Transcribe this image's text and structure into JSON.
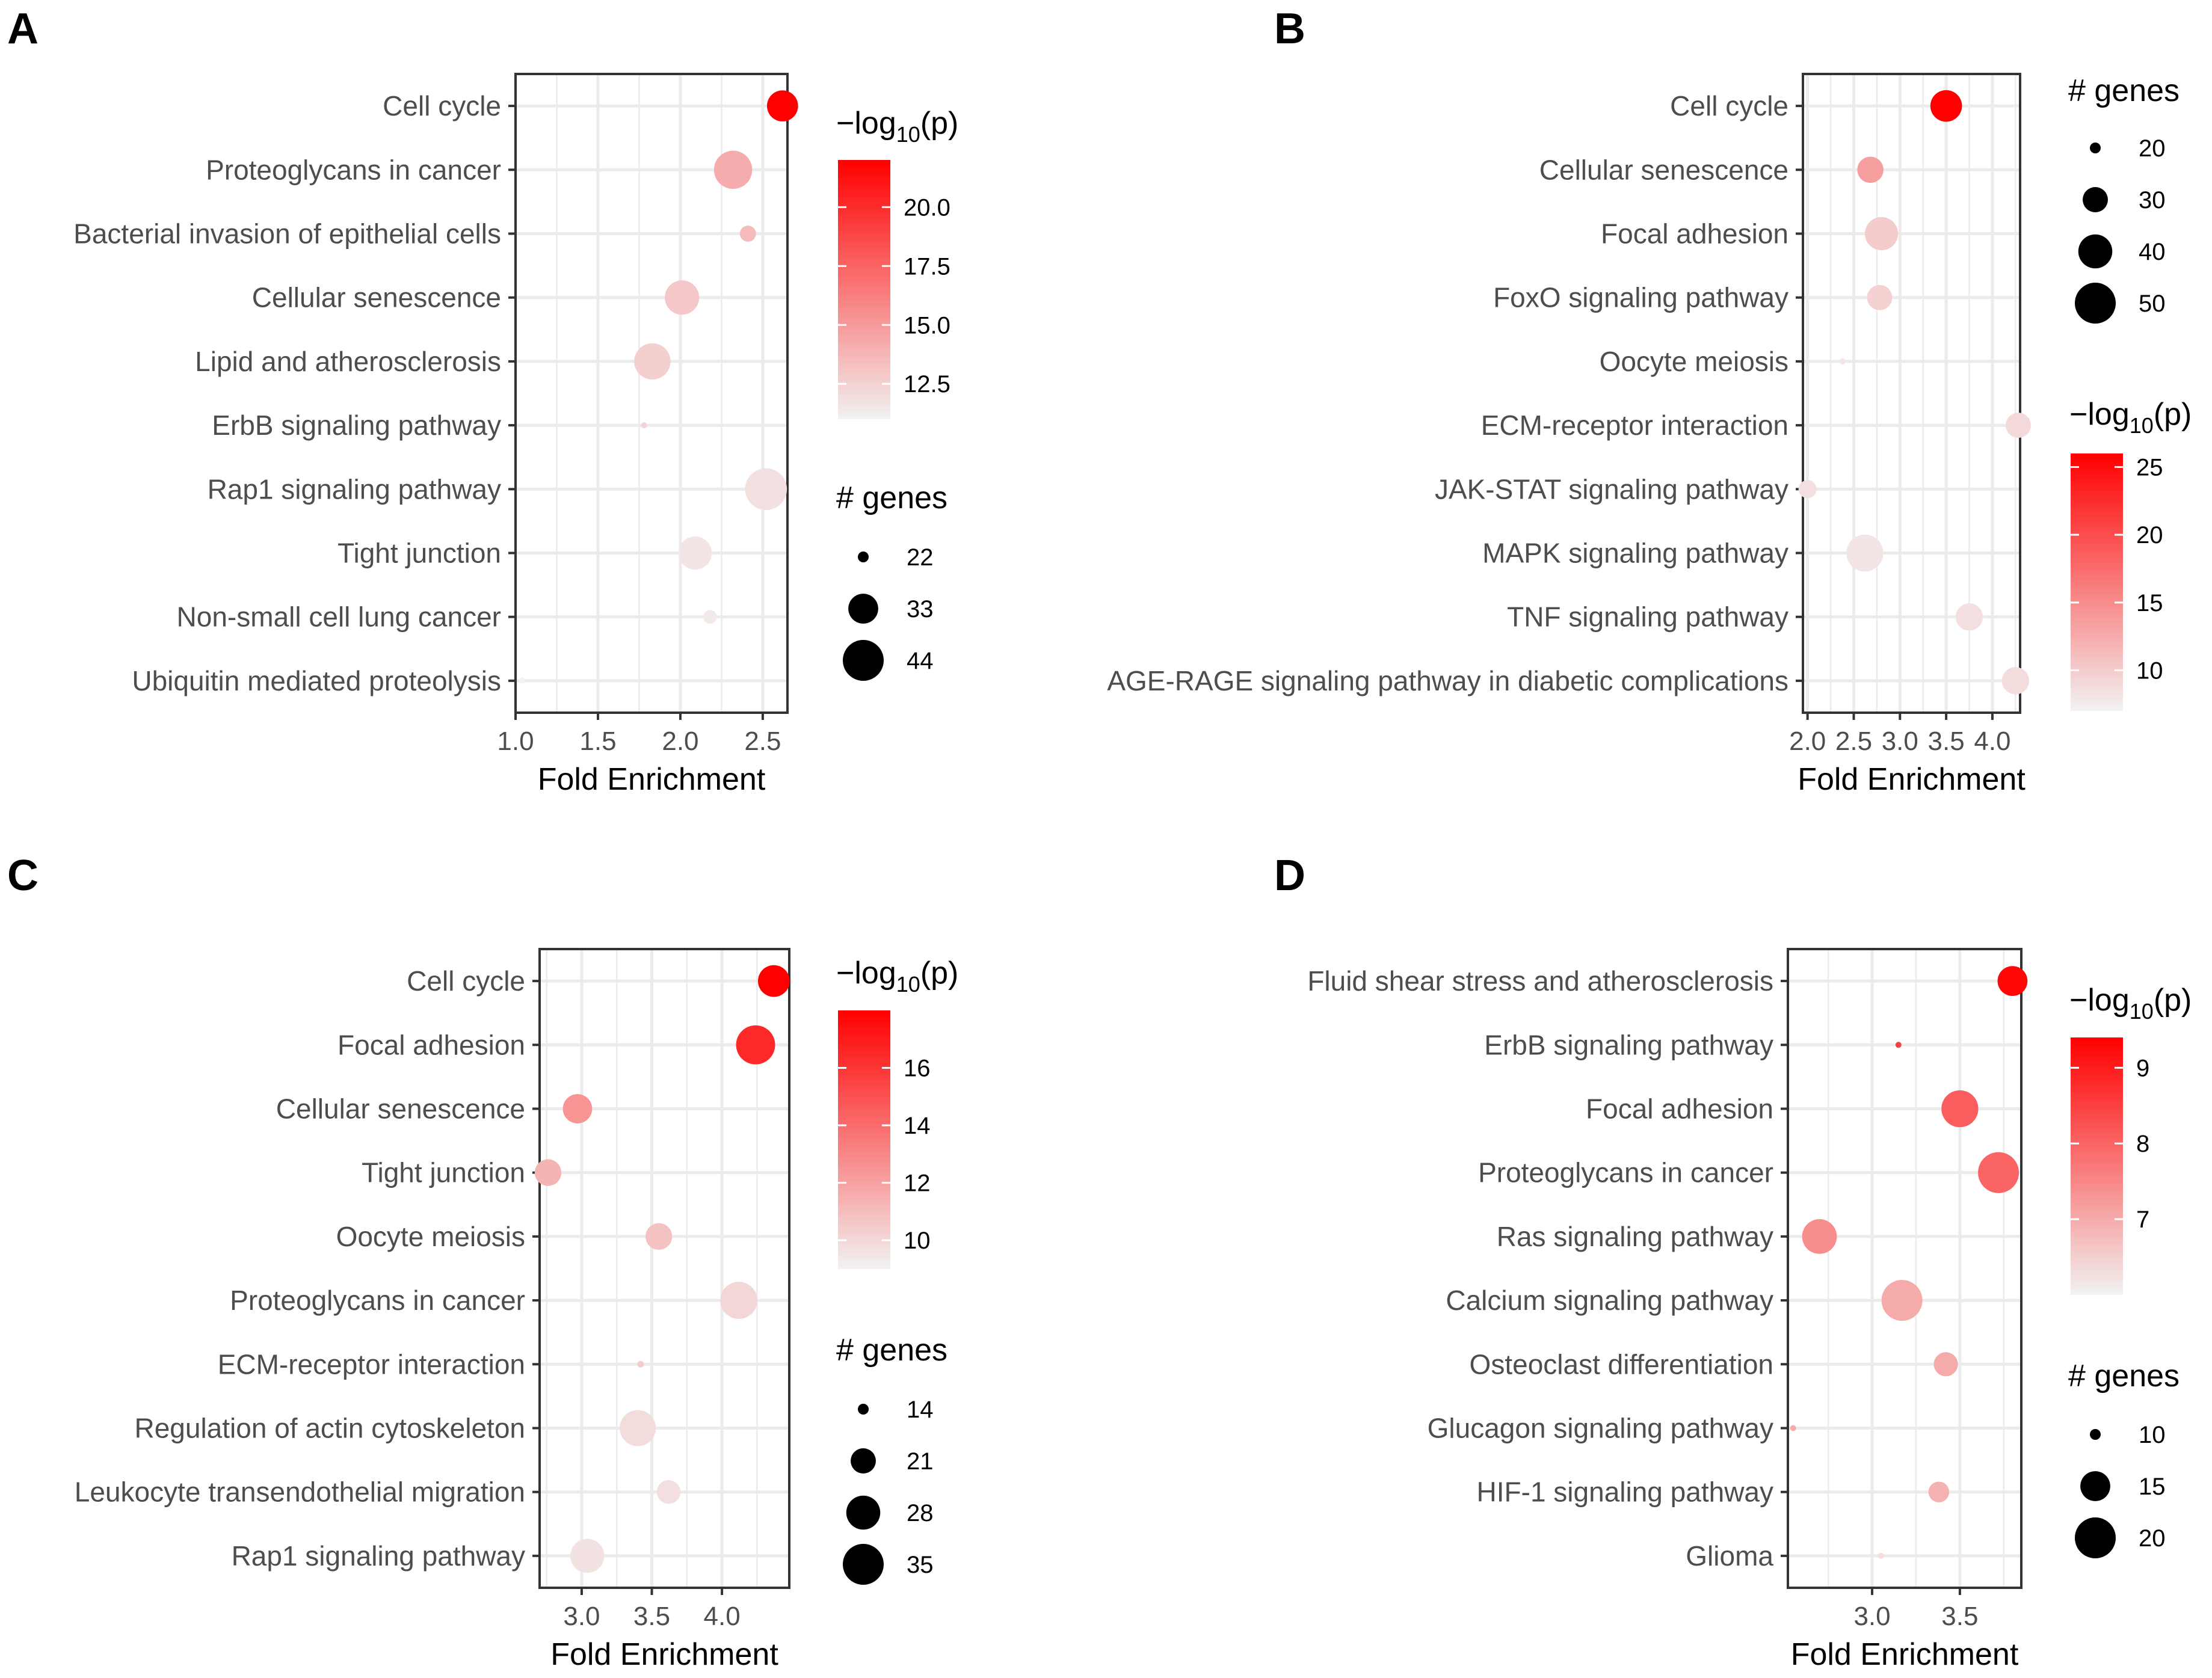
{
  "figure": {
    "colors": {
      "low": "#f2f2f2",
      "high": "#ff0000",
      "grid": "#ebebeb",
      "axis": "#333333"
    }
  },
  "chart_data": [
    {
      "panel": "A",
      "type": "scatter",
      "xlabel": "Fold Enrichment",
      "xlim": [
        1.0,
        2.65
      ],
      "xticks": [
        1.0,
        1.5,
        2.0,
        2.5
      ],
      "xtick_labels": [
        "1.0",
        "1.5",
        "2.0",
        "2.5"
      ],
      "categories": [
        "Cell cycle",
        "Proteoglycans in cancer",
        "Bacterial invasion of epithelial cells",
        "Cellular senescence",
        "Lipid and atherosclerosis",
        "ErbB signaling pathway",
        "Rap1 signaling pathway",
        "Tight junction",
        "Non-small cell lung cancer",
        "Ubiquitin mediated proteolysis"
      ],
      "fold_enrichment": [
        2.62,
        2.32,
        2.41,
        2.01,
        1.83,
        1.78,
        2.52,
        2.09,
        2.18,
        1.04
      ],
      "neg_log10_p": [
        22.0,
        14.2,
        13.5,
        12.9,
        12.6,
        12.4,
        11.8,
        11.6,
        11.4,
        11.0
      ],
      "genes": [
        34,
        41,
        24,
        37,
        39,
        20,
        45,
        36,
        23,
        18
      ],
      "color_legend": {
        "title_base": "−log",
        "title_sub": "10",
        "title_end": "(p)",
        "min": 11.0,
        "max": 22.0,
        "ticks": [
          20.0,
          17.5,
          15.0,
          12.5
        ],
        "tick_labels": [
          "20.0",
          "17.5",
          "15.0",
          "12.5"
        ]
      },
      "size_legend": {
        "title": "# genes",
        "values": [
          22,
          33,
          44
        ],
        "labels": [
          "22",
          "33",
          "44"
        ],
        "order": "color-first"
      }
    },
    {
      "panel": "B",
      "type": "scatter",
      "xlabel": "Fold Enrichment",
      "xlim": [
        1.95,
        4.3
      ],
      "xticks": [
        2.0,
        2.5,
        3.0,
        3.5,
        4.0
      ],
      "xtick_labels": [
        "2.0",
        "2.5",
        "3.0",
        "3.5",
        "4.0"
      ],
      "categories": [
        "Cell cycle",
        "Cellular senescence",
        "Focal adhesion",
        "FoxO signaling pathway",
        "Oocyte meiosis",
        "ECM-receptor interaction",
        "JAK-STAT signaling pathway",
        "MAPK signaling pathway",
        "TNF signaling pathway",
        "AGE-RAGE signaling pathway in diabetic complications"
      ],
      "fold_enrichment": [
        3.5,
        2.68,
        2.8,
        2.78,
        2.38,
        4.28,
        2.0,
        2.62,
        3.75,
        4.25
      ],
      "neg_log10_p": [
        26.0,
        13.5,
        10.0,
        9.5,
        8.0,
        9.0,
        8.5,
        8.0,
        8.5,
        8.7
      ],
      "genes": [
        37,
        31,
        39,
        30,
        18,
        30,
        24,
        44,
        32,
        32
      ],
      "color_legend": {
        "title_base": "−log",
        "title_sub": "10",
        "title_end": "(p)",
        "min": 7.0,
        "max": 26.0,
        "ticks": [
          25,
          20,
          15,
          10
        ],
        "tick_labels": [
          "25",
          "20",
          "15",
          "10"
        ]
      },
      "size_legend": {
        "title": "# genes",
        "values": [
          20,
          30,
          40,
          50
        ],
        "labels": [
          "20",
          "30",
          "40",
          "50"
        ],
        "order": "size-first"
      }
    },
    {
      "panel": "C",
      "type": "scatter",
      "xlabel": "Fold Enrichment",
      "xlim": [
        2.7,
        4.48
      ],
      "xticks": [
        3.0,
        3.5,
        4.0
      ],
      "xtick_labels": [
        "3.0",
        "3.5",
        "4.0"
      ],
      "categories": [
        "Cell cycle",
        "Focal adhesion",
        "Cellular senescence",
        "Tight junction",
        "Oocyte meiosis",
        "Proteoglycans in cancer",
        "ECM-receptor interaction",
        "Regulation of actin cytoskeleton",
        "Leukocyte transendothelial migration",
        "Rap1 signaling pathway"
      ],
      "fold_enrichment": [
        4.37,
        4.24,
        2.97,
        2.76,
        3.55,
        4.12,
        3.42,
        3.4,
        3.62,
        3.04
      ],
      "neg_log10_p": [
        18.0,
        16.5,
        12.5,
        11.3,
        10.8,
        10.0,
        10.5,
        9.8,
        9.7,
        9.6
      ],
      "genes": [
        26,
        33,
        24,
        22,
        22,
        31,
        13,
        30,
        20,
        28
      ],
      "color_legend": {
        "title_base": "−log",
        "title_sub": "10",
        "title_end": "(p)",
        "min": 9.0,
        "max": 18.0,
        "ticks": [
          16,
          14,
          12,
          10
        ],
        "tick_labels": [
          "16",
          "14",
          "12",
          "10"
        ]
      },
      "size_legend": {
        "title": "# genes",
        "values": [
          14,
          21,
          28,
          35
        ],
        "labels": [
          "14",
          "21",
          "28",
          "35"
        ],
        "order": "color-first"
      }
    },
    {
      "panel": "D",
      "type": "scatter",
      "xlabel": "Fold Enrichment",
      "xlim": [
        2.52,
        3.85
      ],
      "xticks": [
        3.0,
        3.5
      ],
      "xtick_labels": [
        "3.0",
        "3.5"
      ],
      "categories": [
        "Fluid shear stress and atherosclerosis",
        "ErbB signaling pathway",
        "Focal adhesion",
        "Proteoglycans in cancer",
        "Ras signaling pathway",
        "Calcium signaling pathway",
        "Osteoclast differentiation",
        "Glucagon signaling pathway",
        "HIF-1 signaling pathway",
        "Glioma"
      ],
      "fold_enrichment": [
        3.8,
        3.15,
        3.5,
        3.72,
        2.7,
        3.17,
        3.42,
        2.55,
        3.38,
        3.05
      ],
      "neg_log10_p": [
        9.3,
        8.5,
        8.1,
        8.0,
        7.4,
        7.0,
        7.0,
        7.0,
        6.9,
        6.3
      ],
      "genes": [
        15,
        9,
        18,
        20,
        17,
        20,
        13,
        8,
        12,
        6
      ],
      "color_legend": {
        "title_base": "−log",
        "title_sub": "10",
        "title_end": "(p)",
        "min": 6.0,
        "max": 9.4,
        "ticks": [
          9,
          8,
          7
        ],
        "tick_labels": [
          "9",
          "8",
          "7"
        ]
      },
      "size_legend": {
        "title": "# genes",
        "values": [
          10,
          15,
          20
        ],
        "labels": [
          "10",
          "15",
          "20"
        ],
        "order": "color-first"
      }
    }
  ]
}
